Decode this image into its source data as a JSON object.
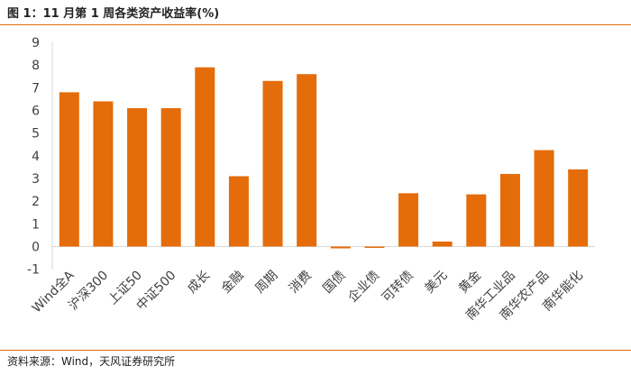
{
  "header": {
    "title": "图 1：11 月第 1 周各类资产收益率(%)"
  },
  "footer": {
    "source": "资料来源：Wind，天风证券研究所"
  },
  "colors": {
    "bar": "#E46C0A",
    "rule": "#E46C0A",
    "axis": "#D9D9D9",
    "text": "#404040"
  },
  "chart_data": {
    "type": "bar",
    "title": "",
    "xlabel": "",
    "ylabel": "",
    "ylim": [
      -1,
      9
    ],
    "yticks": [
      -1,
      0,
      1,
      2,
      3,
      4,
      5,
      6,
      7,
      8,
      9
    ],
    "grid": false,
    "categories": [
      "Wind全A",
      "沪深300",
      "上证50",
      "中证500",
      "成长",
      "金融",
      "周期",
      "消费",
      "国债",
      "企业债",
      "可转债",
      "美元",
      "黄金",
      "南华工业品",
      "南华农产品",
      "南华能化"
    ],
    "values": [
      6.8,
      6.4,
      6.1,
      6.1,
      7.9,
      3.1,
      7.3,
      7.6,
      -0.08,
      -0.06,
      2.35,
      0.22,
      2.3,
      3.2,
      4.25,
      3.4
    ]
  }
}
